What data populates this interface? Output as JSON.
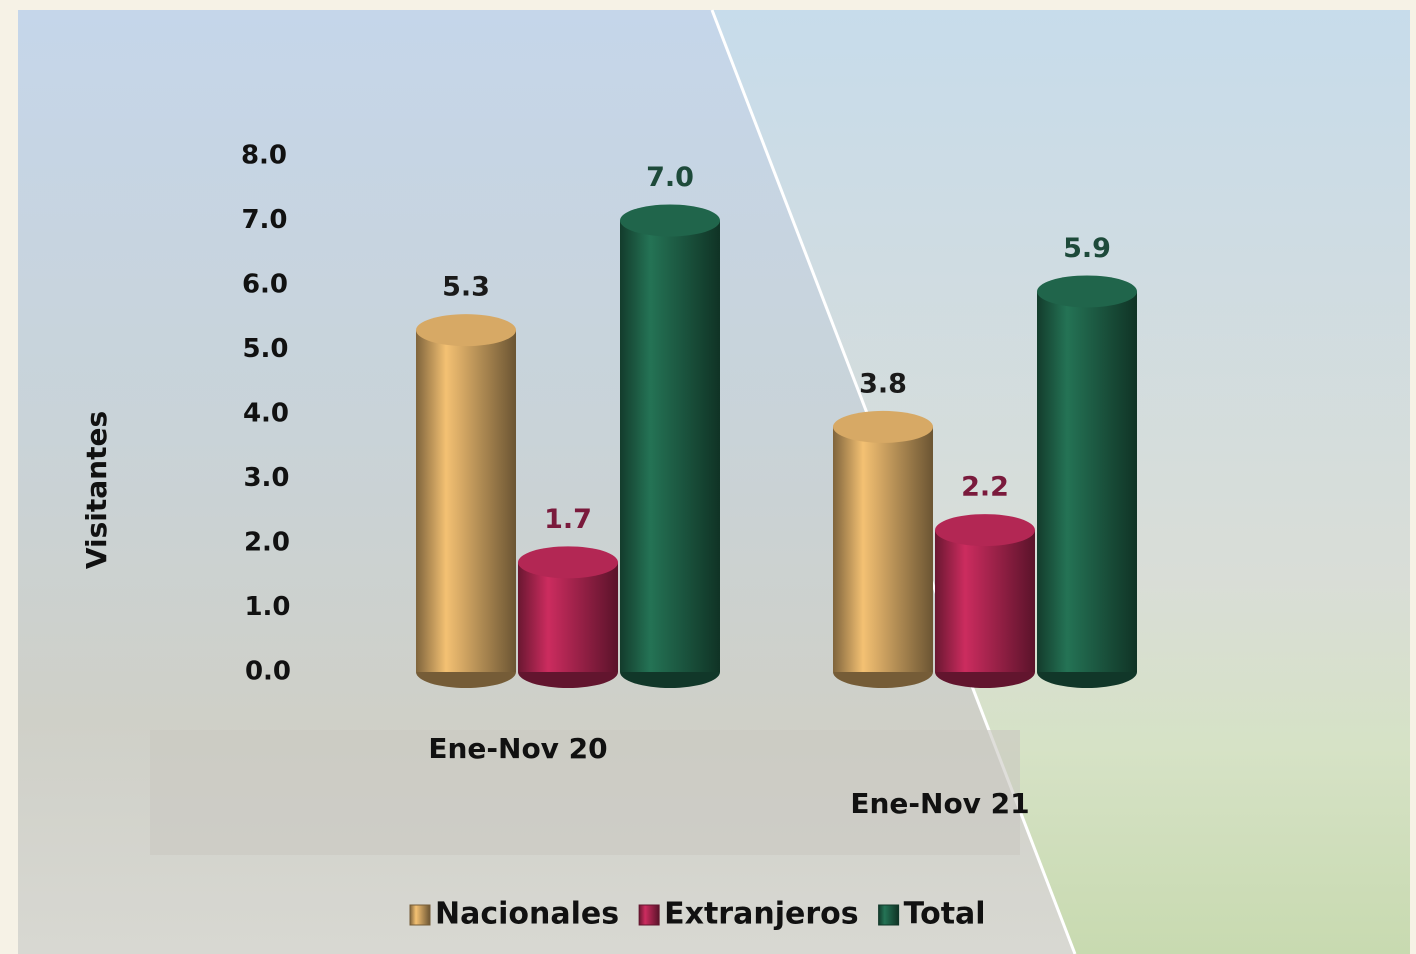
{
  "chart_data": {
    "type": "bar",
    "y_label": "Visitantes",
    "categories": [
      "Ene-Nov 20",
      "Ene-Nov 21"
    ],
    "series": [
      {
        "name": "Nacionales",
        "color": "#c39a5c",
        "label_color": "#1a1a1a",
        "values": [
          5.3,
          3.8
        ],
        "value_labels": [
          "5.3",
          "3.8"
        ]
      },
      {
        "name": "Extranjeros",
        "color": "#a3234c",
        "label_color": "#7a1a3c",
        "values": [
          1.7,
          2.2
        ],
        "value_labels": [
          "1.7",
          "2.2"
        ]
      },
      {
        "name": "Total",
        "color": "#1d5c44",
        "label_color": "#1d4a3a",
        "values": [
          7.0,
          5.9
        ],
        "value_labels": [
          "7.0",
          "5.9"
        ]
      }
    ],
    "ylim": [
      0,
      8
    ],
    "yticks": [
      {
        "value": 0,
        "label": "0.0"
      },
      {
        "value": 1,
        "label": "1.0"
      },
      {
        "value": 2,
        "label": "2.0"
      },
      {
        "value": 3,
        "label": "3.0"
      },
      {
        "value": 4,
        "label": "4.0"
      },
      {
        "value": 5,
        "label": "5.0"
      },
      {
        "value": 6,
        "label": "6.0"
      },
      {
        "value": 7,
        "label": "7.0"
      },
      {
        "value": 8,
        "label": "8.0"
      }
    ],
    "grid": false,
    "legend": "bottom"
  }
}
